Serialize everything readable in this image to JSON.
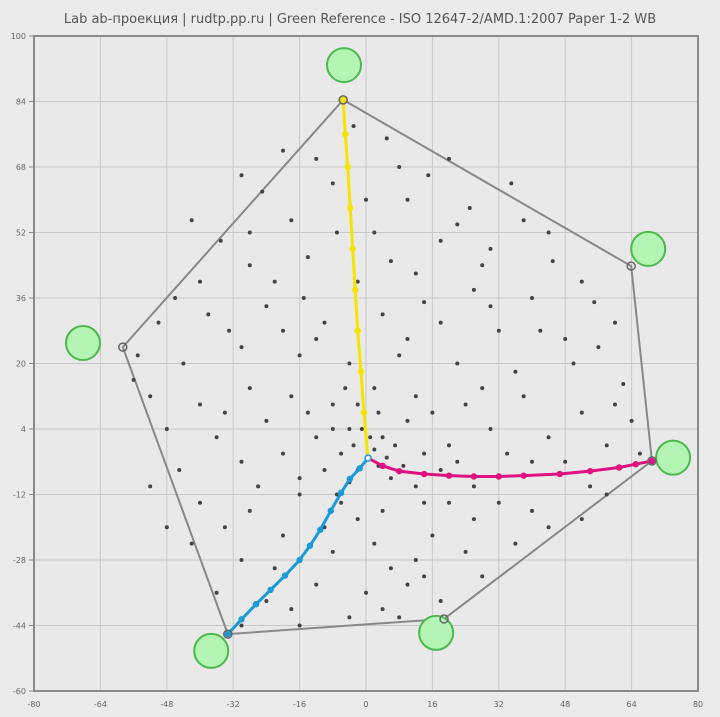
{
  "chart_data": {
    "type": "scatter",
    "title": "Lab ab-проекция  |  rudtp.pp.ru  |  Green Reference - ISO 12647-2/AMD.1:2007 Paper 1-2 WB",
    "xlim": [
      -80,
      80
    ],
    "ylim": [
      -60,
      100
    ],
    "xticks": [
      -80,
      -64,
      -48,
      -32,
      -16,
      0,
      16,
      32,
      48,
      64,
      80
    ],
    "yticks": [
      100,
      84,
      68,
      52,
      36,
      20,
      4,
      -12,
      -28,
      -44,
      -60
    ],
    "grid": true,
    "colors": {
      "background": "#e9e9e9",
      "grid": "#c9c9c9",
      "hull": "#888888",
      "points": "#444444",
      "yellow": "#f5e400",
      "magenta": "#e0117f",
      "cyan": "#1a9ad6",
      "reference_fill": "#b4f4b4",
      "reference_stroke": "#4cb94c"
    },
    "gamut_hull": [
      [
        -5.5,
        84.4
      ],
      [
        63.9,
        43.8
      ],
      [
        68.9,
        -3.8
      ],
      [
        18.8,
        -42.4
      ],
      [
        -33.3,
        -46.1
      ],
      [
        -58.6,
        24.0
      ]
    ],
    "reference_targets": [
      [
        -5.3,
        92.9
      ],
      [
        68.0,
        48.0
      ],
      [
        74.0,
        -3.0
      ],
      [
        16.9,
        -45.8
      ],
      [
        -37.3,
        -50.2
      ],
      [
        -68.2,
        25.0
      ]
    ],
    "ramps": {
      "yellow": [
        [
          0.5,
          -3.1
        ],
        [
          -0.5,
          8
        ],
        [
          -1.2,
          18
        ],
        [
          -2,
          28
        ],
        [
          -2.6,
          38
        ],
        [
          -3.2,
          48
        ],
        [
          -3.8,
          58
        ],
        [
          -4.4,
          68
        ],
        [
          -5,
          76
        ],
        [
          -5.5,
          84.4
        ]
      ],
      "magenta": [
        [
          0.5,
          -3.1
        ],
        [
          4,
          -5
        ],
        [
          8,
          -6.3
        ],
        [
          14,
          -7
        ],
        [
          20,
          -7.4
        ],
        [
          26,
          -7.6
        ],
        [
          32,
          -7.6
        ],
        [
          38,
          -7.4
        ],
        [
          46.7,
          -7
        ],
        [
          54,
          -6.3
        ],
        [
          61,
          -5.4
        ],
        [
          65,
          -4.6
        ],
        [
          68.9,
          -3.8
        ]
      ],
      "cyan": [
        [
          0.5,
          -3.1
        ],
        [
          -1.5,
          -5.6
        ],
        [
          -3.9,
          -8.2
        ],
        [
          -6,
          -11.6
        ],
        [
          -8.5,
          -16
        ],
        [
          -11,
          -20.6
        ],
        [
          -13.5,
          -24.5
        ],
        [
          -16,
          -28
        ],
        [
          -19.5,
          -31.8
        ],
        [
          -23,
          -35.3
        ],
        [
          -26.5,
          -38.8
        ],
        [
          -30,
          -42.5
        ],
        [
          -33.3,
          -46.1
        ]
      ]
    },
    "points": [
      [
        -20,
        72
      ],
      [
        -12,
        70
      ],
      [
        5,
        75
      ],
      [
        15,
        66
      ],
      [
        -25,
        62
      ],
      [
        -8,
        64
      ],
      [
        10,
        60
      ],
      [
        25,
        58
      ],
      [
        38,
        55
      ],
      [
        -35,
        50
      ],
      [
        -18,
        55
      ],
      [
        2,
        52
      ],
      [
        18,
        50
      ],
      [
        30,
        48
      ],
      [
        45,
        45
      ],
      [
        -40,
        40
      ],
      [
        -28,
        44
      ],
      [
        -14,
        46
      ],
      [
        -2,
        40
      ],
      [
        12,
        42
      ],
      [
        26,
        38
      ],
      [
        40,
        36
      ],
      [
        55,
        35
      ],
      [
        -50,
        30
      ],
      [
        -38,
        32
      ],
      [
        -24,
        34
      ],
      [
        -10,
        30
      ],
      [
        4,
        32
      ],
      [
        18,
        30
      ],
      [
        32,
        28
      ],
      [
        48,
        26
      ],
      [
        60,
        30
      ],
      [
        -55,
        22
      ],
      [
        -44,
        20
      ],
      [
        -30,
        24
      ],
      [
        -16,
        22
      ],
      [
        -4,
        20
      ],
      [
        8,
        22
      ],
      [
        22,
        20
      ],
      [
        36,
        18
      ],
      [
        50,
        20
      ],
      [
        62,
        15
      ],
      [
        -30,
        66
      ],
      [
        20,
        70
      ],
      [
        -3,
        78
      ],
      [
        8,
        68
      ],
      [
        35,
        64
      ],
      [
        -42,
        55
      ],
      [
        28,
        44
      ],
      [
        -22,
        40
      ],
      [
        44,
        52
      ],
      [
        52,
        40
      ],
      [
        -33,
        28
      ],
      [
        0,
        60
      ],
      [
        -15,
        36
      ],
      [
        14,
        35
      ],
      [
        -7,
        52
      ],
      [
        6,
        45
      ],
      [
        -28,
        52
      ],
      [
        22,
        54
      ],
      [
        -12,
        26
      ],
      [
        10,
        26
      ],
      [
        30,
        34
      ],
      [
        42,
        28
      ],
      [
        -20,
        28
      ],
      [
        -46,
        36
      ],
      [
        56,
        24
      ],
      [
        -52,
        12
      ],
      [
        -40,
        10
      ],
      [
        -28,
        14
      ],
      [
        -18,
        12
      ],
      [
        -8,
        10
      ],
      [
        2,
        14
      ],
      [
        12,
        12
      ],
      [
        24,
        10
      ],
      [
        38,
        12
      ],
      [
        52,
        8
      ],
      [
        64,
        6
      ],
      [
        -48,
        4
      ],
      [
        -36,
        2
      ],
      [
        -24,
        6
      ],
      [
        -12,
        2
      ],
      [
        -4,
        4
      ],
      [
        4,
        2
      ],
      [
        10,
        6
      ],
      [
        20,
        0
      ],
      [
        30,
        4
      ],
      [
        44,
        2
      ],
      [
        58,
        0
      ],
      [
        -45,
        -6
      ],
      [
        -30,
        -4
      ],
      [
        -20,
        -2
      ],
      [
        -10,
        -6
      ],
      [
        6,
        -8
      ],
      [
        14,
        -2
      ],
      [
        26,
        -10
      ],
      [
        40,
        -4
      ],
      [
        54,
        -10
      ],
      [
        66,
        -2
      ],
      [
        -3,
        0
      ],
      [
        2,
        -1
      ],
      [
        -2,
        -6
      ],
      [
        3,
        -5
      ],
      [
        -6,
        -2
      ],
      [
        1,
        2
      ],
      [
        5,
        -3
      ],
      [
        -4,
        -9
      ],
      [
        -1,
        4
      ],
      [
        7,
        0
      ],
      [
        -8,
        4
      ],
      [
        3,
        8
      ],
      [
        -5,
        14
      ],
      [
        16,
        8
      ],
      [
        -14,
        8
      ],
      [
        34,
        -2
      ],
      [
        48,
        -4
      ],
      [
        60,
        10
      ],
      [
        -34,
        8
      ],
      [
        -56,
        16
      ],
      [
        28,
        14
      ],
      [
        -2,
        10
      ],
      [
        9,
        -5
      ],
      [
        -7,
        -12
      ],
      [
        12,
        -10
      ],
      [
        18,
        -6
      ],
      [
        -16,
        -8
      ],
      [
        22,
        -4
      ],
      [
        -40,
        -14
      ],
      [
        -28,
        -16
      ],
      [
        -16,
        -12
      ],
      [
        -6,
        -14
      ],
      [
        4,
        -16
      ],
      [
        14,
        -14
      ],
      [
        26,
        -18
      ],
      [
        40,
        -16
      ],
      [
        52,
        -18
      ],
      [
        -42,
        -24
      ],
      [
        -30,
        -28
      ],
      [
        -20,
        -22
      ],
      [
        -8,
        -26
      ],
      [
        2,
        -24
      ],
      [
        12,
        -28
      ],
      [
        24,
        -26
      ],
      [
        36,
        -24
      ],
      [
        -36,
        -36
      ],
      [
        -24,
        -38
      ],
      [
        -12,
        -34
      ],
      [
        0,
        -36
      ],
      [
        10,
        -34
      ],
      [
        18,
        -38
      ],
      [
        -30,
        -44
      ],
      [
        -16,
        -44
      ],
      [
        -4,
        -42
      ],
      [
        8,
        -42
      ],
      [
        28,
        -32
      ],
      [
        44,
        -20
      ],
      [
        -48,
        -20
      ],
      [
        -52,
        -10
      ],
      [
        -2,
        -18
      ],
      [
        6,
        -30
      ],
      [
        16,
        -22
      ],
      [
        -10,
        -20
      ],
      [
        -22,
        -30
      ],
      [
        32,
        -14
      ],
      [
        20,
        -14
      ],
      [
        -34,
        -20
      ],
      [
        -18,
        -40
      ],
      [
        4,
        -40
      ],
      [
        14,
        -32
      ],
      [
        -26,
        -10
      ],
      [
        58,
        -12
      ]
    ]
  }
}
